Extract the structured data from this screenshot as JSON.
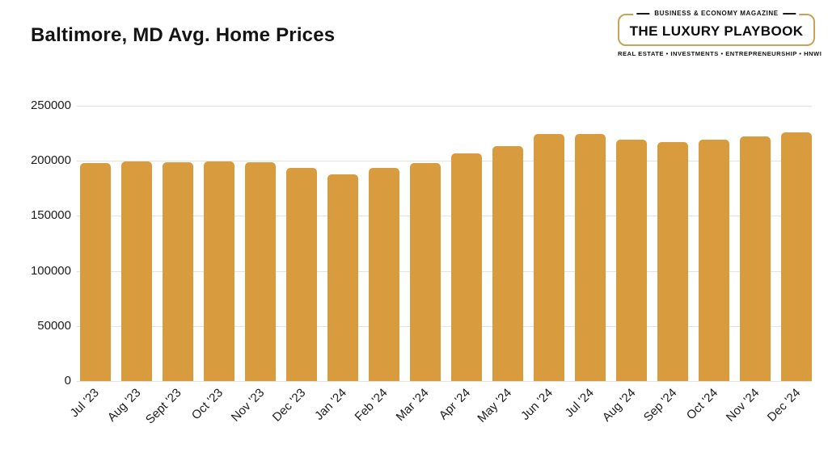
{
  "header": {
    "title": "Baltimore, MD Avg. Home Prices"
  },
  "logo": {
    "top_label": "BUSINESS & ECONOMY MAGAZINE",
    "name": "THE LUXURY PLAYBOOK",
    "tagline": "REAL ESTATE • INVESTMENTS • ENTREPRENEURSHIP • HNWI",
    "border_color": "#C9A158"
  },
  "chart_data": {
    "type": "bar",
    "title": "Baltimore, MD Avg. Home Prices",
    "categories": [
      "Jul '23",
      "Aug '23",
      "Sept '23",
      "Oct '23",
      "Nov '23",
      "Dec '23",
      "Jan '24",
      "Feb '24",
      "Mar '24",
      "Apr '24",
      "May '24",
      "Jun '24",
      "Jul '24",
      "Aug '24",
      "Sep '24",
      "Oct '24",
      "Nov '24",
      "Dec '24"
    ],
    "values": [
      198000,
      199500,
      198500,
      199500,
      199000,
      193500,
      187500,
      193500,
      198000,
      207000,
      213500,
      224000,
      224000,
      219000,
      217000,
      219500,
      222500,
      226000
    ],
    "xlabel": "",
    "ylabel": "",
    "ylim": [
      0,
      250000
    ],
    "yticks": [
      0,
      50000,
      100000,
      150000,
      200000,
      250000
    ],
    "ytick_labels": [
      "0",
      "50000",
      "100000",
      "150000",
      "200000",
      "250000"
    ],
    "bar_color": "#D89B3D",
    "grid_color": "#E5E3E0",
    "grid": "horizontal",
    "legend": "none",
    "x_label_rotation_deg": -45
  }
}
